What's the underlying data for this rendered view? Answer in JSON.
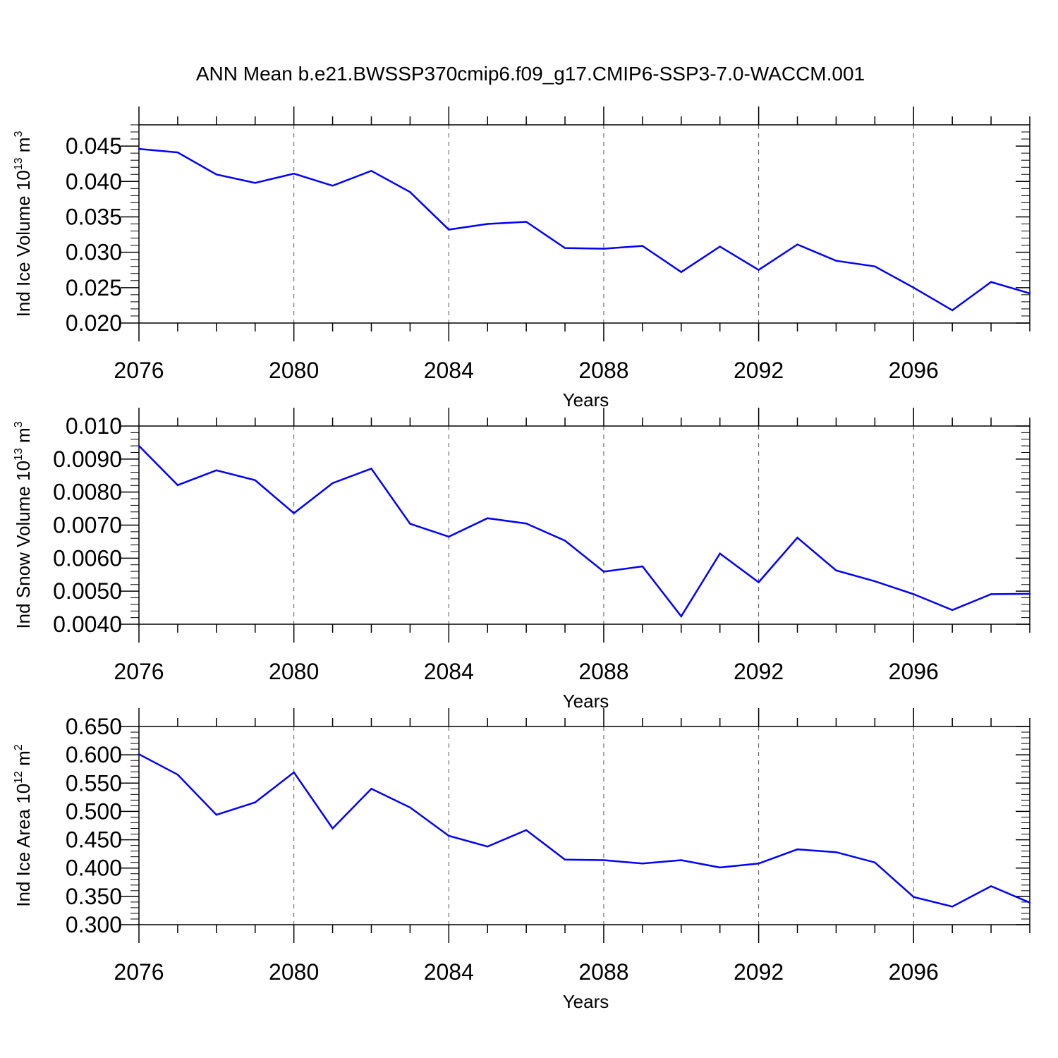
{
  "title": "ANN Mean b.e21.BWSSP370cmip6.f09_g17.CMIP6-SSP3-7.0-WACCM.001",
  "colors": {
    "line": "#0000ff",
    "axis": "#000000",
    "grid": "#555555"
  },
  "chart_data": [
    {
      "type": "line",
      "title": "ANN Mean b.e21.BWSSP370cmip6.f09_g17.CMIP6-SSP3-7.0-WACCM.001",
      "ylabel": {
        "main": "Ind Ice Volume 10",
        "exp": "13",
        "unit": " m",
        "unit_exp": "3"
      },
      "xlabel": "Years",
      "xlim": [
        2076,
        2099
      ],
      "ylim": [
        0.02,
        0.048
      ],
      "x_ticks": [
        "2076",
        "2080",
        "2084",
        "2088",
        "2092",
        "2096"
      ],
      "y_ticks": [
        "0.020",
        "0.025",
        "0.030",
        "0.035",
        "0.040",
        "0.045"
      ],
      "x": [
        2076,
        2077,
        2078,
        2079,
        2080,
        2081,
        2082,
        2083,
        2084,
        2085,
        2086,
        2087,
        2088,
        2089,
        2090,
        2091,
        2092,
        2093,
        2094,
        2095,
        2096,
        2097,
        2098,
        2099
      ],
      "values": [
        0.0446,
        0.0441,
        0.041,
        0.0398,
        0.0411,
        0.0394,
        0.0415,
        0.0385,
        0.0332,
        0.034,
        0.0343,
        0.0306,
        0.0305,
        0.0309,
        0.0272,
        0.0308,
        0.0275,
        0.0311,
        0.0288,
        0.028,
        0.025,
        0.0218,
        0.0258,
        0.0242
      ],
      "grid": "vertical dashed at major x ticks"
    },
    {
      "type": "line",
      "ylabel": {
        "main": "Ind Snow Volume 10",
        "exp": "13",
        "unit": " m",
        "unit_exp": "3"
      },
      "xlabel": "Years",
      "xlim": [
        2076,
        2099
      ],
      "ylim": [
        0.004,
        0.01
      ],
      "x_ticks": [
        "2076",
        "2080",
        "2084",
        "2088",
        "2092",
        "2096"
      ],
      "y_ticks": [
        "0.0040",
        "0.0050",
        "0.0060",
        "0.0070",
        "0.0080",
        "0.0090",
        "0.010"
      ],
      "x": [
        2076,
        2077,
        2078,
        2079,
        2080,
        2081,
        2082,
        2083,
        2084,
        2085,
        2086,
        2087,
        2088,
        2089,
        2090,
        2091,
        2092,
        2093,
        2094,
        2095,
        2096,
        2097,
        2098,
        2099
      ],
      "values": [
        0.0094,
        0.00821,
        0.00866,
        0.00836,
        0.00736,
        0.00827,
        0.00871,
        0.00704,
        0.00665,
        0.00721,
        0.00705,
        0.00653,
        0.00559,
        0.00575,
        0.00424,
        0.00614,
        0.00527,
        0.00662,
        0.00563,
        0.0053,
        0.00491,
        0.00443,
        0.00491,
        0.00492
      ],
      "grid": "vertical dashed at major x ticks"
    },
    {
      "type": "line",
      "ylabel": {
        "main": "Ind Ice Area 10",
        "exp": "12",
        "unit": " m",
        "unit_exp": "2"
      },
      "xlabel": "Years",
      "xlim": [
        2076,
        2099
      ],
      "ylim": [
        0.3,
        0.65
      ],
      "x_ticks": [
        "2076",
        "2080",
        "2084",
        "2088",
        "2092",
        "2096"
      ],
      "y_ticks": [
        "0.300",
        "0.350",
        "0.400",
        "0.450",
        "0.500",
        "0.550",
        "0.600",
        "0.650"
      ],
      "x": [
        2076,
        2077,
        2078,
        2079,
        2080,
        2081,
        2082,
        2083,
        2084,
        2085,
        2086,
        2087,
        2088,
        2089,
        2090,
        2091,
        2092,
        2093,
        2094,
        2095,
        2096,
        2097,
        2098,
        2099
      ],
      "values": [
        0.601,
        0.565,
        0.494,
        0.516,
        0.569,
        0.47,
        0.54,
        0.507,
        0.457,
        0.438,
        0.467,
        0.415,
        0.414,
        0.408,
        0.414,
        0.401,
        0.408,
        0.433,
        0.428,
        0.41,
        0.349,
        0.332,
        0.368,
        0.339
      ],
      "grid": "vertical dashed at major x ticks"
    }
  ]
}
